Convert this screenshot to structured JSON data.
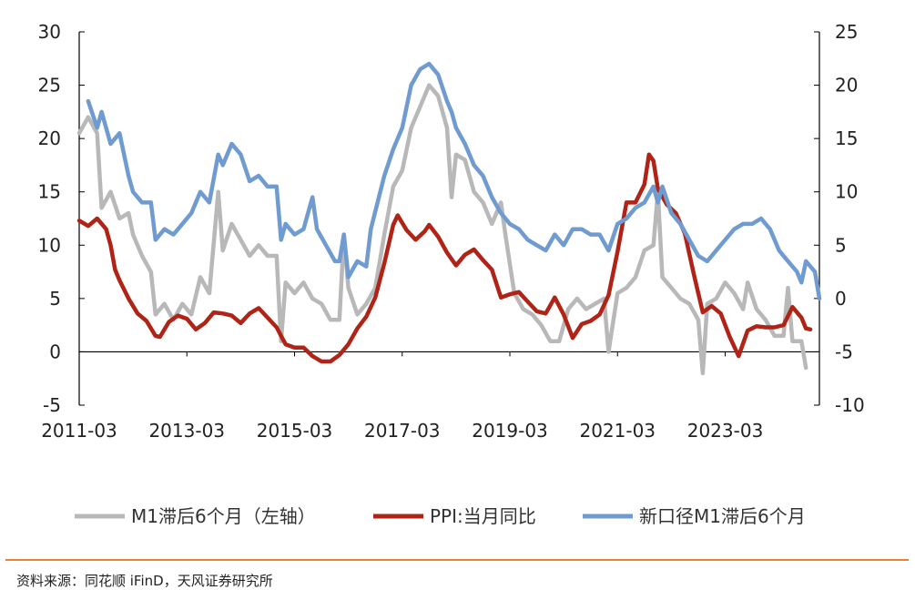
{
  "chart_data": {
    "type": "line",
    "title": "",
    "x_ticks": [
      "2011-03",
      "2013-03",
      "2015-03",
      "2017-03",
      "2019-03",
      "2021-03",
      "2023-03"
    ],
    "x_range": [
      "2011-03",
      "2024-12"
    ],
    "y_left": {
      "ylim": [
        -5,
        30
      ],
      "ticks": [
        -5,
        0,
        5,
        10,
        15,
        20,
        25,
        30
      ]
    },
    "y_right": {
      "ylim": [
        -10,
        25
      ],
      "ticks": [
        -10,
        -5,
        0,
        5,
        10,
        15,
        20,
        25
      ]
    },
    "grid": false,
    "legend_position": "bottom",
    "series": [
      {
        "name": "M1滞后6个月（左轴）",
        "axis": "left",
        "color": "#b8b8b8",
        "points": [
          [
            "2011-03",
            20.5
          ],
          [
            "2011-05",
            22.0
          ],
          [
            "2011-07",
            20.5
          ],
          [
            "2011-08",
            13.5
          ],
          [
            "2011-10",
            15.0
          ],
          [
            "2011-12",
            12.5
          ],
          [
            "2012-02",
            13.0
          ],
          [
            "2012-03",
            11.0
          ],
          [
            "2012-05",
            9.0
          ],
          [
            "2012-07",
            7.5
          ],
          [
            "2012-08",
            3.5
          ],
          [
            "2012-10",
            4.5
          ],
          [
            "2012-12",
            3.0
          ],
          [
            "2013-02",
            4.5
          ],
          [
            "2013-04",
            3.5
          ],
          [
            "2013-06",
            7.0
          ],
          [
            "2013-08",
            5.5
          ],
          [
            "2013-10",
            15.0
          ],
          [
            "2013-11",
            9.5
          ],
          [
            "2014-01",
            12.0
          ],
          [
            "2014-03",
            10.5
          ],
          [
            "2014-05",
            9.0
          ],
          [
            "2014-07",
            10.0
          ],
          [
            "2014-09",
            9.0
          ],
          [
            "2014-11",
            9.0
          ],
          [
            "2014-12",
            1.0
          ],
          [
            "2015-01",
            6.5
          ],
          [
            "2015-03",
            5.5
          ],
          [
            "2015-05",
            6.5
          ],
          [
            "2015-07",
            5.0
          ],
          [
            "2015-09",
            4.5
          ],
          [
            "2015-11",
            3.0
          ],
          [
            "2016-01",
            3.0
          ],
          [
            "2016-02",
            11.0
          ],
          [
            "2016-03",
            6.0
          ],
          [
            "2016-05",
            3.5
          ],
          [
            "2016-07",
            4.5
          ],
          [
            "2016-09",
            6.0
          ],
          [
            "2016-11",
            11.0
          ],
          [
            "2017-01",
            15.5
          ],
          [
            "2017-03",
            17.0
          ],
          [
            "2017-05",
            21.0
          ],
          [
            "2017-07",
            23.0
          ],
          [
            "2017-09",
            25.0
          ],
          [
            "2017-11",
            24.0
          ],
          [
            "2018-01",
            21.0
          ],
          [
            "2018-02",
            14.5
          ],
          [
            "2018-03",
            18.5
          ],
          [
            "2018-05",
            18.0
          ],
          [
            "2018-07",
            15.0
          ],
          [
            "2018-09",
            14.0
          ],
          [
            "2018-11",
            12.0
          ],
          [
            "2019-01",
            14.0
          ],
          [
            "2019-02",
            11.0
          ],
          [
            "2019-04",
            5.5
          ],
          [
            "2019-06",
            4.0
          ],
          [
            "2019-08",
            3.5
          ],
          [
            "2019-10",
            2.5
          ],
          [
            "2019-12",
            1.0
          ],
          [
            "2020-02",
            1.0
          ],
          [
            "2020-04",
            4.0
          ],
          [
            "2020-06",
            5.0
          ],
          [
            "2020-08",
            4.0
          ],
          [
            "2020-10",
            4.5
          ],
          [
            "2020-12",
            5.0
          ],
          [
            "2021-01",
            0.0
          ],
          [
            "2021-03",
            5.5
          ],
          [
            "2021-05",
            6.0
          ],
          [
            "2021-07",
            7.0
          ],
          [
            "2021-09",
            9.5
          ],
          [
            "2021-11",
            10.0
          ],
          [
            "2021-12",
            15.0
          ],
          [
            "2022-01",
            7.0
          ],
          [
            "2022-03",
            6.0
          ],
          [
            "2022-05",
            5.0
          ],
          [
            "2022-07",
            4.5
          ],
          [
            "2022-09",
            3.0
          ],
          [
            "2022-10",
            -2.0
          ],
          [
            "2022-11",
            4.5
          ],
          [
            "2023-01",
            5.0
          ],
          [
            "2023-03",
            6.5
          ],
          [
            "2023-05",
            5.5
          ],
          [
            "2023-07",
            4.0
          ],
          [
            "2023-08",
            6.5
          ],
          [
            "2023-10",
            4.0
          ],
          [
            "2023-12",
            3.0
          ],
          [
            "2024-02",
            1.5
          ],
          [
            "2024-04",
            1.5
          ],
          [
            "2024-05",
            6.0
          ],
          [
            "2024-06",
            1.0
          ],
          [
            "2024-08",
            1.0
          ],
          [
            "2024-09",
            -1.5
          ]
        ]
      },
      {
        "name": "PPI:当月同比",
        "axis": "right",
        "color": "#b02418",
        "points": [
          [
            "2011-03",
            7.3
          ],
          [
            "2011-05",
            6.8
          ],
          [
            "2011-07",
            7.5
          ],
          [
            "2011-09",
            6.5
          ],
          [
            "2011-10",
            5.0
          ],
          [
            "2011-11",
            2.7
          ],
          [
            "2011-12",
            1.7
          ],
          [
            "2012-02",
            0.0
          ],
          [
            "2012-04",
            -1.4
          ],
          [
            "2012-06",
            -2.1
          ],
          [
            "2012-08",
            -3.5
          ],
          [
            "2012-09",
            -3.6
          ],
          [
            "2012-11",
            -2.2
          ],
          [
            "2013-01",
            -1.6
          ],
          [
            "2013-03",
            -1.9
          ],
          [
            "2013-05",
            -2.9
          ],
          [
            "2013-07",
            -2.3
          ],
          [
            "2013-09",
            -1.3
          ],
          [
            "2013-11",
            -1.4
          ],
          [
            "2014-01",
            -1.6
          ],
          [
            "2014-03",
            -2.3
          ],
          [
            "2014-05",
            -1.4
          ],
          [
            "2014-07",
            -0.9
          ],
          [
            "2014-09",
            -1.8
          ],
          [
            "2014-11",
            -2.7
          ],
          [
            "2015-01",
            -4.3
          ],
          [
            "2015-03",
            -4.6
          ],
          [
            "2015-05",
            -4.6
          ],
          [
            "2015-07",
            -5.4
          ],
          [
            "2015-09",
            -5.9
          ],
          [
            "2015-11",
            -5.9
          ],
          [
            "2016-01",
            -5.3
          ],
          [
            "2016-03",
            -4.3
          ],
          [
            "2016-05",
            -2.8
          ],
          [
            "2016-07",
            -1.7
          ],
          [
            "2016-09",
            0.1
          ],
          [
            "2016-11",
            3.3
          ],
          [
            "2017-01",
            6.9
          ],
          [
            "2017-02",
            7.8
          ],
          [
            "2017-04",
            6.4
          ],
          [
            "2017-06",
            5.5
          ],
          [
            "2017-08",
            6.3
          ],
          [
            "2017-09",
            6.9
          ],
          [
            "2017-11",
            5.8
          ],
          [
            "2018-01",
            4.3
          ],
          [
            "2018-03",
            3.1
          ],
          [
            "2018-05",
            4.1
          ],
          [
            "2018-07",
            4.6
          ],
          [
            "2018-09",
            3.6
          ],
          [
            "2018-11",
            2.7
          ],
          [
            "2019-01",
            0.1
          ],
          [
            "2019-03",
            0.4
          ],
          [
            "2019-05",
            0.6
          ],
          [
            "2019-07",
            -0.3
          ],
          [
            "2019-09",
            -1.2
          ],
          [
            "2019-11",
            -1.4
          ],
          [
            "2020-01",
            0.1
          ],
          [
            "2020-03",
            -1.5
          ],
          [
            "2020-05",
            -3.7
          ],
          [
            "2020-07",
            -2.4
          ],
          [
            "2020-09",
            -2.1
          ],
          [
            "2020-11",
            -1.5
          ],
          [
            "2021-01",
            0.3
          ],
          [
            "2021-03",
            4.4
          ],
          [
            "2021-05",
            9.0
          ],
          [
            "2021-07",
            9.0
          ],
          [
            "2021-09",
            10.7
          ],
          [
            "2021-10",
            13.5
          ],
          [
            "2021-11",
            12.9
          ],
          [
            "2021-12",
            10.3
          ],
          [
            "2022-02",
            8.8
          ],
          [
            "2022-04",
            8.0
          ],
          [
            "2022-06",
            6.1
          ],
          [
            "2022-08",
            2.3
          ],
          [
            "2022-10",
            -1.3
          ],
          [
            "2022-12",
            -0.7
          ],
          [
            "2023-02",
            -1.4
          ],
          [
            "2023-04",
            -3.6
          ],
          [
            "2023-06",
            -5.4
          ],
          [
            "2023-08",
            -3.0
          ],
          [
            "2023-10",
            -2.6
          ],
          [
            "2023-12",
            -2.7
          ],
          [
            "2024-02",
            -2.7
          ],
          [
            "2024-04",
            -2.5
          ],
          [
            "2024-06",
            -0.8
          ],
          [
            "2024-08",
            -1.8
          ],
          [
            "2024-09",
            -2.8
          ],
          [
            "2024-10",
            -2.9
          ]
        ]
      },
      {
        "name": "新口径M1滞后6个月",
        "axis": "left",
        "color": "#6f9bd0",
        "points": [
          [
            "2011-05",
            23.5
          ],
          [
            "2011-07",
            21.0
          ],
          [
            "2011-08",
            22.5
          ],
          [
            "2011-10",
            19.5
          ],
          [
            "2011-12",
            20.5
          ],
          [
            "2012-02",
            16.5
          ],
          [
            "2012-03",
            15.0
          ],
          [
            "2012-05",
            14.0
          ],
          [
            "2012-07",
            14.0
          ],
          [
            "2012-08",
            10.5
          ],
          [
            "2012-10",
            11.5
          ],
          [
            "2012-12",
            11.0
          ],
          [
            "2013-02",
            12.0
          ],
          [
            "2013-04",
            13.0
          ],
          [
            "2013-06",
            15.0
          ],
          [
            "2013-08",
            14.0
          ],
          [
            "2013-10",
            18.5
          ],
          [
            "2013-11",
            17.5
          ],
          [
            "2014-01",
            19.5
          ],
          [
            "2014-03",
            18.5
          ],
          [
            "2014-05",
            16.0
          ],
          [
            "2014-07",
            16.5
          ],
          [
            "2014-09",
            15.5
          ],
          [
            "2014-11",
            15.5
          ],
          [
            "2014-12",
            10.5
          ],
          [
            "2015-01",
            12.0
          ],
          [
            "2015-03",
            11.0
          ],
          [
            "2015-05",
            11.5
          ],
          [
            "2015-07",
            14.5
          ],
          [
            "2015-08",
            11.5
          ],
          [
            "2015-10",
            10.0
          ],
          [
            "2015-12",
            8.5
          ],
          [
            "2016-01",
            8.5
          ],
          [
            "2016-02",
            11.0
          ],
          [
            "2016-03",
            7.0
          ],
          [
            "2016-05",
            8.5
          ],
          [
            "2016-07",
            8.0
          ],
          [
            "2016-08",
            11.5
          ],
          [
            "2016-11",
            16.5
          ],
          [
            "2017-01",
            19.0
          ],
          [
            "2017-03",
            21.0
          ],
          [
            "2017-05",
            25.0
          ],
          [
            "2017-07",
            26.5
          ],
          [
            "2017-09",
            27.0
          ],
          [
            "2017-11",
            26.0
          ],
          [
            "2018-01",
            23.5
          ],
          [
            "2018-02",
            22.5
          ],
          [
            "2018-03",
            21.0
          ],
          [
            "2018-05",
            19.5
          ],
          [
            "2018-07",
            17.5
          ],
          [
            "2018-09",
            16.5
          ],
          [
            "2018-11",
            14.5
          ],
          [
            "2019-01",
            13.0
          ],
          [
            "2019-03",
            12.0
          ],
          [
            "2019-05",
            11.5
          ],
          [
            "2019-07",
            10.5
          ],
          [
            "2019-09",
            10.0
          ],
          [
            "2019-11",
            9.5
          ],
          [
            "2020-01",
            11.0
          ],
          [
            "2020-03",
            10.0
          ],
          [
            "2020-05",
            11.5
          ],
          [
            "2020-07",
            11.5
          ],
          [
            "2020-09",
            11.0
          ],
          [
            "2020-11",
            11.0
          ],
          [
            "2021-01",
            9.5
          ],
          [
            "2021-03",
            12.0
          ],
          [
            "2021-05",
            12.5
          ],
          [
            "2021-07",
            13.5
          ],
          [
            "2021-09",
            14.0
          ],
          [
            "2021-11",
            15.5
          ],
          [
            "2021-12",
            14.0
          ],
          [
            "2022-01",
            15.5
          ],
          [
            "2022-03",
            13.0
          ],
          [
            "2022-05",
            12.0
          ],
          [
            "2022-07",
            10.5
          ],
          [
            "2022-09",
            9.0
          ],
          [
            "2022-11",
            8.5
          ],
          [
            "2023-01",
            9.5
          ],
          [
            "2023-03",
            10.5
          ],
          [
            "2023-05",
            11.5
          ],
          [
            "2023-07",
            12.0
          ],
          [
            "2023-09",
            12.0
          ],
          [
            "2023-11",
            12.5
          ],
          [
            "2024-01",
            11.5
          ],
          [
            "2024-03",
            9.5
          ],
          [
            "2024-05",
            8.5
          ],
          [
            "2024-07",
            7.5
          ],
          [
            "2024-08",
            6.5
          ],
          [
            "2024-09",
            8.5
          ],
          [
            "2024-11",
            7.5
          ],
          [
            "2024-12",
            5.0
          ]
        ]
      }
    ]
  },
  "colors": {
    "rule": "#e8813a",
    "axis": "#000000"
  },
  "footer": {
    "source": "资料来源：同花顺 iFinD，天风证券研究所"
  }
}
